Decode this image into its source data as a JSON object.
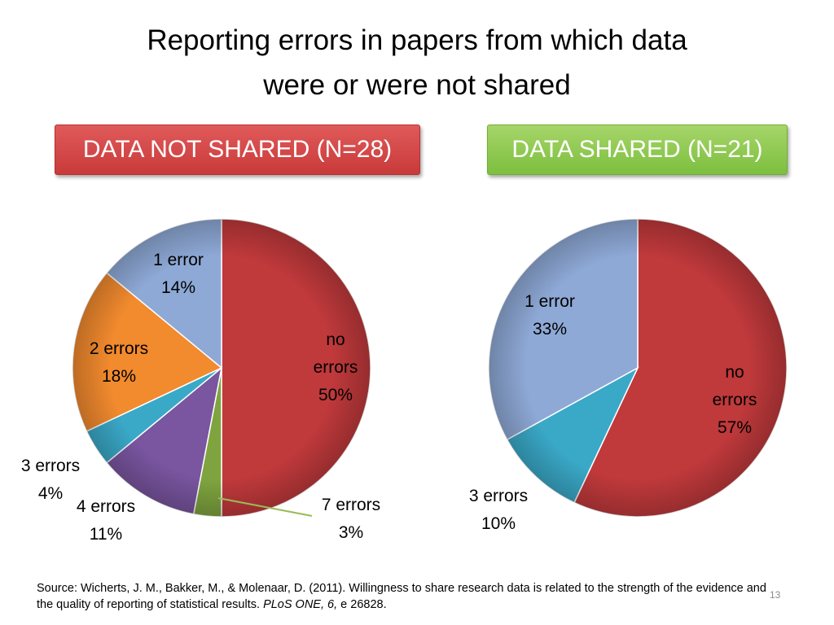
{
  "title": "Reporting errors in papers from which data were or were not shared",
  "chart_data": [
    {
      "type": "pie",
      "title": "DATA NOT SHARED (N=28)",
      "categories": [
        "no errors",
        "7 errors",
        "4 errors",
        "3 errors",
        "2 errors",
        "1 error"
      ],
      "values": [
        50,
        3,
        11,
        4,
        18,
        14
      ],
      "value_labels": [
        "50%",
        "3%",
        "11%",
        "4%",
        "18%",
        "14%"
      ],
      "colors": [
        "#c0393b",
        "#7fa43f",
        "#7a55a0",
        "#3aa9c8",
        "#f28a2e",
        "#8ea9d6"
      ]
    },
    {
      "type": "pie",
      "title": "DATA SHARED (N=21)",
      "categories": [
        "no errors",
        "3 errors",
        "1 error"
      ],
      "values": [
        57,
        10,
        33
      ],
      "value_labels": [
        "57%",
        "10%",
        "33%"
      ],
      "colors": [
        "#c0393b",
        "#3aa9c8",
        "#8ea9d6"
      ]
    }
  ],
  "source": [
    "Source: Wicherts, J. M., Bakker, M., & Molenaar, D. (2011). Willingness to share research data is related to the strength of the evidence and the quality of reporting of statistical results. ",
    "PLoS ONE, 6,",
    " e 26828."
  ],
  "page_number": "13"
}
